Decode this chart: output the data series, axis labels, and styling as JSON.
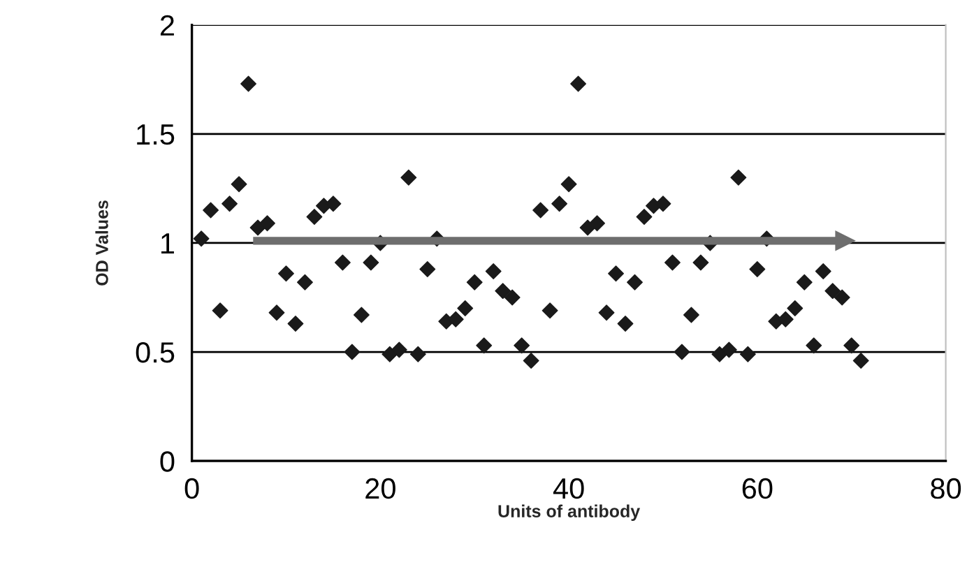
{
  "chart_data": {
    "type": "scatter",
    "xlabel": "Units of antibody",
    "ylabel": "OD Values",
    "xlim": [
      0,
      80
    ],
    "xticks": [
      0,
      20,
      40,
      60,
      80
    ],
    "ylim": [
      0,
      2
    ],
    "yticks": [
      0,
      0.5,
      1,
      1.5,
      2
    ],
    "grid": "y",
    "marker": "diamond",
    "series": [
      {
        "color": "#1a1a1a",
        "x": [
          1,
          2,
          3,
          4,
          5,
          6,
          7,
          8,
          9,
          10,
          11,
          12,
          13,
          14,
          15,
          16,
          17,
          18,
          19,
          20,
          21,
          22,
          23,
          24,
          25,
          26,
          27,
          28,
          29,
          30,
          31,
          32,
          33,
          34,
          35,
          36,
          37,
          38,
          39,
          40,
          41,
          42,
          43,
          44,
          45,
          46,
          47,
          48,
          49,
          50,
          51,
          52,
          53,
          54,
          55,
          56,
          57,
          58,
          59,
          60,
          61,
          62,
          63,
          64,
          65,
          66,
          67,
          68,
          69,
          70,
          71
        ],
        "values": [
          1.02,
          1.15,
          0.69,
          1.18,
          1.27,
          1.73,
          1.07,
          1.09,
          0.68,
          0.86,
          0.63,
          0.82,
          1.12,
          1.17,
          1.18,
          0.91,
          0.5,
          0.67,
          0.91,
          1.0,
          0.49,
          0.51,
          1.3,
          0.49,
          0.88,
          1.02,
          0.64,
          0.65,
          0.7,
          0.82,
          0.53,
          0.87,
          0.78,
          0.75,
          0.53,
          0.46,
          1.15,
          0.69,
          1.18,
          1.27,
          1.73,
          1.07,
          1.09,
          0.68,
          0.86,
          0.63,
          0.82,
          1.12,
          1.17,
          1.18,
          0.91,
          0.5,
          0.67,
          0.91,
          1.0,
          0.49,
          0.51,
          1.3,
          0.49,
          0.88,
          1.02,
          0.64,
          0.65,
          0.7,
          0.82,
          0.53,
          0.87,
          0.78,
          0.75,
          0.53,
          0.46
        ]
      },
      {
        "type": "line",
        "marker": "triangle",
        "color": "#6e6e6e",
        "x": [
          6.5,
          69.3
        ],
        "values": [
          1.01,
          1.01
        ]
      }
    ]
  }
}
